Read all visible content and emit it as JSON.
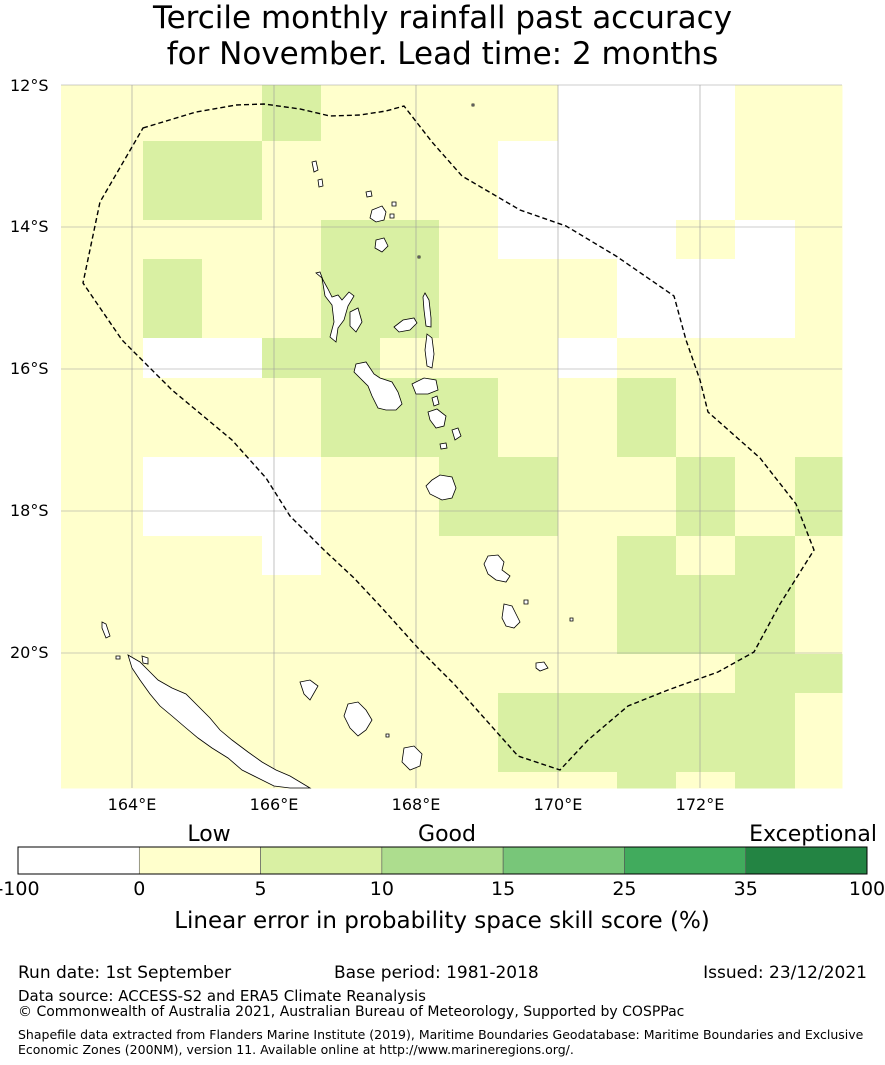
{
  "title": {
    "line1": "Tercile monthly rainfall past accuracy",
    "line2": "for November. Lead time: 2 months"
  },
  "map": {
    "lat_labels": [
      "12°S",
      "14°S",
      "16°S",
      "18°S",
      "20°S"
    ],
    "lon_labels": [
      "164°E",
      "166°E",
      "168°E",
      "170°E",
      "172°E"
    ],
    "lon_range": [
      163,
      174
    ],
    "lat_range": [
      -21.8,
      -12
    ],
    "cell_size_deg": 0.833,
    "grid_cols": 13,
    "grid_rows": 12,
    "skill_category_grid": [
      "1112111100011",
      "1221111000011",
      "1111221000101",
      "1211221110001",
      "1002211101111",
      "1111222112111",
      "1000112211212",
      "1110111112121",
      "1111111112221",
      "1111111111122",
      "1111111222221",
      "1111111112121"
    ],
    "outline": "dashed EEZ boundary",
    "feature": "Vanuatu EEZ"
  },
  "legend": {
    "top_labels": [
      "Low",
      "Good",
      "Exceptional"
    ],
    "bin_labels": [
      "-100",
      "0",
      "5",
      "10",
      "15",
      "25",
      "35",
      "100"
    ],
    "bin_colors": [
      "#ffffff",
      "#ffffcc",
      "#d9f0a3",
      "#addd8e",
      "#78c679",
      "#41ab5d",
      "#238443"
    ],
    "axis_title": "Linear error in probability space skill score (%)"
  },
  "footer": {
    "run_date": "Run date: 1st September",
    "base_period": "Base period: 1981-2018",
    "issued": "Issued: 23/12/2021",
    "data_source": "Data source: ACCESS-S2 and ERA5 Climate Reanalysis",
    "copyright": "© Commonwealth of Australia 2021, Australian Bureau of Meteorology, Supported by COSPPac",
    "shapefile_line1": "Shapefile data extracted from Flanders Marine Institute (2019), Maritime Boundaries Geodatabase: Maritime Boundaries and Exclusive",
    "shapefile_line2": "Economic Zones (200NM), version 11. Available online at http://www.marineregions.org/."
  }
}
